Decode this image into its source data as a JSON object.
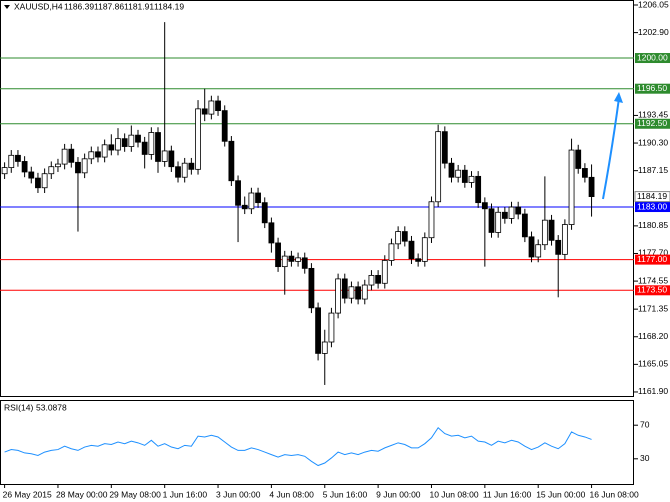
{
  "chart_data": [
    {
      "type": "candlestick",
      "symbol": "XAUUSD,H4",
      "categories": [
        "26 May 2015",
        null,
        null,
        null,
        null,
        null,
        null,
        null,
        "28 May 00:00",
        null,
        null,
        null,
        null,
        null,
        null,
        null,
        "29 May 08:00",
        null,
        null,
        null,
        null,
        null,
        null,
        null,
        "1 Jun 16:00",
        null,
        null,
        null,
        null,
        null,
        null,
        null,
        "3 Jun 00:00",
        null,
        null,
        null,
        null,
        null,
        null,
        null,
        "4 Jun 08:00",
        null,
        null,
        null,
        null,
        null,
        null,
        null,
        "5 Jun 16:00",
        null,
        null,
        null,
        null,
        null,
        null,
        null,
        "9 Jun 00:00",
        null,
        null,
        null,
        null,
        null,
        null,
        null,
        "10 Jun 08:00",
        null,
        null,
        null,
        null,
        null,
        null,
        null,
        "11 Jun 16:00",
        null,
        null,
        null,
        null,
        null,
        null,
        null,
        "15 Jun 00:00",
        null,
        null,
        null,
        null,
        null,
        null,
        null,
        "16 Jun 08:00"
      ],
      "open": [
        1186.8,
        1187.5,
        1188.9,
        1188.2,
        1187.0,
        1186.3,
        1185.2,
        1186.8,
        1187.6,
        1187.9,
        1189.6,
        1188.1,
        1186.9,
        1188.5,
        1189.3,
        1188.7,
        1190.1,
        1189.5,
        1190.8,
        1189.9,
        1191.2,
        1190.4,
        1189.0,
        1191.5,
        1188.2,
        1189.4,
        1187.6,
        1186.4,
        1188.0,
        1187.3,
        1194.2,
        1193.6,
        1195.1,
        1194.0,
        1190.5,
        1186.0,
        1183.2,
        1182.8,
        1184.6,
        1183.5,
        1181.2,
        1178.9,
        1176.2,
        1177.4,
        1176.8,
        1177.2,
        1176.0,
        1171.5,
        1166.3,
        1167.6,
        1170.9,
        1174.8,
        1172.6,
        1173.9,
        1172.5,
        1174.1,
        1175.2,
        1174.3,
        1176.9,
        1178.8,
        1180.2,
        1179.1,
        1177.1,
        1176.8,
        1179.5,
        1183.6,
        1191.6,
        1188.0,
        1186.4,
        1187.2,
        1185.8,
        1186.5,
        1183.5,
        1182.8,
        1180.1,
        1182.4,
        1181.7,
        1183.0,
        1182.2,
        1179.6,
        1177.3,
        1178.7,
        1181.5,
        1179.2,
        1177.6,
        1181.0,
        1189.5,
        1187.4,
        1186.39
      ],
      "high": [
        1188.1,
        1189.5,
        1189.5,
        1188.8,
        1187.6,
        1186.9,
        1187.4,
        1188.2,
        1188.5,
        1190.2,
        1190.2,
        1188.7,
        1189.1,
        1189.9,
        1189.9,
        1190.7,
        1191.3,
        1192.0,
        1191.4,
        1192.3,
        1191.8,
        1191.0,
        1192.1,
        1192.1,
        1204.1,
        1190.0,
        1188.2,
        1188.6,
        1188.6,
        1195.2,
        1196.5,
        1195.7,
        1195.7,
        1194.6,
        1191.1,
        1186.6,
        1184.2,
        1185.2,
        1185.2,
        1184.1,
        1181.8,
        1179.5,
        1178.0,
        1178.0,
        1177.8,
        1177.8,
        1176.6,
        1172.1,
        1169.0,
        1171.5,
        1175.4,
        1175.4,
        1174.5,
        1174.5,
        1174.7,
        1175.8,
        1175.8,
        1177.5,
        1179.4,
        1180.8,
        1180.8,
        1179.7,
        1177.7,
        1180.1,
        1184.2,
        1192.4,
        1192.2,
        1188.6,
        1187.8,
        1187.8,
        1187.1,
        1187.1,
        1184.1,
        1183.4,
        1183.0,
        1183.0,
        1183.6,
        1183.6,
        1182.8,
        1180.2,
        1179.3,
        1186.5,
        1182.1,
        1179.8,
        1181.6,
        1190.8,
        1190.1,
        1188.0,
        1187.86
      ],
      "low": [
        1186.2,
        1186.9,
        1187.6,
        1186.4,
        1185.7,
        1184.6,
        1184.6,
        1186.2,
        1187.0,
        1187.3,
        1187.5,
        1180.2,
        1186.3,
        1187.9,
        1188.1,
        1188.1,
        1188.9,
        1188.9,
        1189.3,
        1189.3,
        1189.8,
        1187.4,
        1188.4,
        1186.9,
        1187.6,
        1187.0,
        1185.8,
        1185.8,
        1186.7,
        1186.7,
        1192.8,
        1193.0,
        1193.4,
        1189.9,
        1185.4,
        1179.0,
        1182.2,
        1182.2,
        1182.9,
        1180.6,
        1177.8,
        1175.6,
        1173.0,
        1176.2,
        1176.2,
        1175.4,
        1170.9,
        1165.5,
        1162.7,
        1167.0,
        1170.3,
        1172.0,
        1172.0,
        1171.9,
        1171.9,
        1173.5,
        1173.7,
        1173.7,
        1176.3,
        1178.2,
        1178.5,
        1176.5,
        1176.2,
        1176.2,
        1178.9,
        1183.0,
        1187.4,
        1185.8,
        1185.8,
        1185.2,
        1185.2,
        1182.9,
        1176.2,
        1179.5,
        1179.5,
        1181.1,
        1181.1,
        1181.6,
        1179.0,
        1176.7,
        1176.7,
        1178.1,
        1178.6,
        1172.7,
        1177.0,
        1180.4,
        1186.8,
        1185.8,
        1181.91
      ],
      "close": [
        1187.5,
        1188.9,
        1188.2,
        1187.0,
        1186.3,
        1185.2,
        1186.8,
        1187.6,
        1187.9,
        1189.6,
        1188.1,
        1186.9,
        1188.5,
        1189.3,
        1188.7,
        1190.1,
        1189.5,
        1190.8,
        1189.9,
        1191.2,
        1190.4,
        1189.0,
        1191.5,
        1188.2,
        1189.4,
        1187.6,
        1186.4,
        1188.0,
        1187.3,
        1194.2,
        1193.6,
        1195.1,
        1194.0,
        1190.5,
        1186.0,
        1183.2,
        1182.8,
        1184.6,
        1183.5,
        1181.2,
        1178.9,
        1176.2,
        1177.4,
        1176.8,
        1177.2,
        1176.0,
        1171.5,
        1166.3,
        1167.6,
        1170.9,
        1174.8,
        1172.6,
        1173.9,
        1172.5,
        1174.1,
        1175.2,
        1174.3,
        1176.9,
        1178.8,
        1180.2,
        1179.1,
        1177.1,
        1176.8,
        1179.5,
        1183.6,
        1191.6,
        1188.0,
        1186.4,
        1187.2,
        1185.8,
        1186.5,
        1183.5,
        1182.8,
        1180.1,
        1182.4,
        1181.7,
        1183.0,
        1182.2,
        1179.6,
        1177.3,
        1178.7,
        1181.5,
        1179.2,
        1177.6,
        1181.0,
        1189.5,
        1187.4,
        1186.39,
        1184.19
      ],
      "up_color": "#ffffff",
      "down_color": "#000000",
      "ylim": [
        1161.44,
        1206.62
      ],
      "yticks": [
        1206.05,
        {
          "value": 1202.9,
          "label": "1202.90"
        },
        1193.45,
        {
          "value": 1190.3,
          "label": "1190.30"
        },
        1187.15,
        1180.85,
        {
          "value": 1177.7,
          "label": "1177.70"
        },
        1174.55,
        1171.35,
        {
          "value": 1168.2,
          "label": "1168.20"
        },
        1165.05,
        {
          "value": 1161.9,
          "label": "1161.90"
        }
      ],
      "levels": [
        {
          "value": 1200,
          "label": "1200.00",
          "color": "#2e8b2e"
        },
        {
          "value": 1196.5,
          "label": "1196.50",
          "color": "#2e8b2e"
        },
        {
          "value": 1192.5,
          "label": "1192.50",
          "color": "#2e8b2e"
        },
        {
          "value": 1183,
          "label": "1183.00",
          "color": "#0000ff"
        },
        {
          "value": 1177,
          "label": "1177.00",
          "color": "#ff0000"
        },
        {
          "value": 1173.5,
          "label": "1173.50",
          "color": "#ff0000"
        }
      ]
    },
    {
      "type": "line",
      "name": "RSI(14)",
      "color": "#1e90ff",
      "values": [
        38,
        41,
        40,
        37,
        36,
        34,
        38,
        40,
        41,
        45,
        42,
        40,
        44,
        46,
        45,
        48,
        47,
        50,
        48,
        51,
        49,
        46,
        52,
        45,
        48,
        44,
        42,
        46,
        45,
        57,
        56,
        58,
        56,
        50,
        44,
        40,
        40,
        43,
        41,
        38,
        35,
        32,
        35,
        34,
        35,
        33,
        27,
        22,
        25,
        31,
        38,
        35,
        37,
        35,
        38,
        40,
        39,
        43,
        46,
        49,
        47,
        43,
        43,
        48,
        55,
        67,
        60,
        57,
        58,
        55,
        57,
        51,
        50,
        46,
        51,
        49,
        52,
        50,
        45,
        41,
        44,
        49,
        45,
        42,
        48,
        62,
        58,
        56,
        53.0878
      ],
      "ylim": [
        0,
        100
      ],
      "yticks": [
        70,
        30
      ]
    }
  ]
}
